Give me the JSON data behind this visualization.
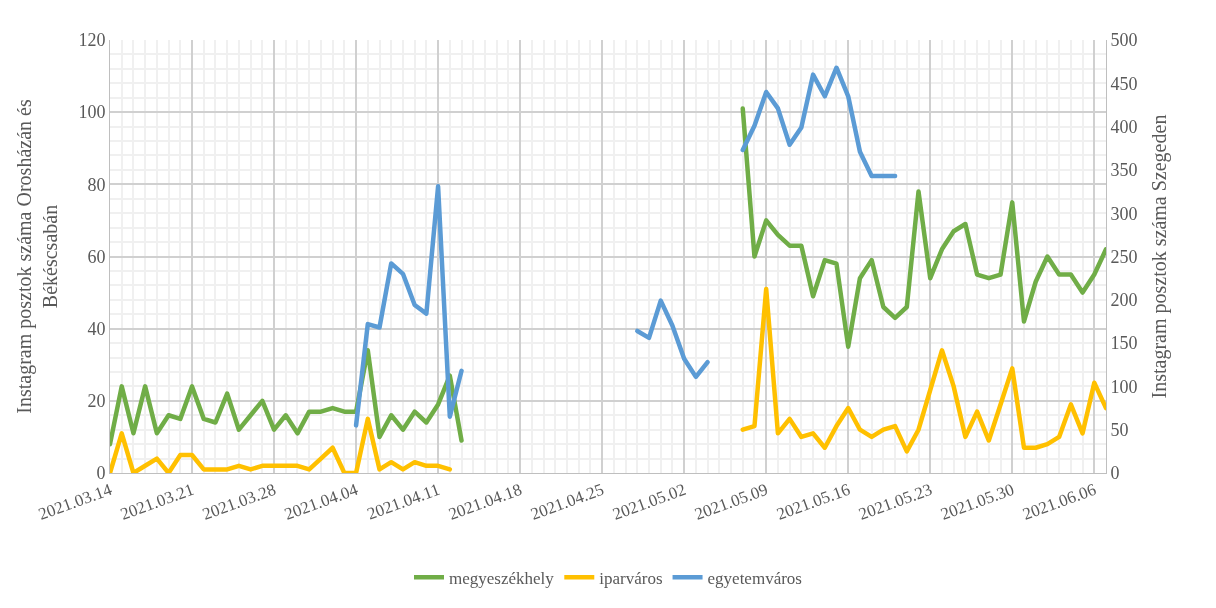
{
  "chart_data": {
    "type": "line",
    "ylabel": "Instagram posztok száma Orosházán és Békéscsabán",
    "y2label": "Instagram posztok száma Szegeden",
    "x": [
      "2021-03-14",
      "2021-03-15",
      "2021-03-16",
      "2021-03-17",
      "2021-03-18",
      "2021-03-19",
      "2021-03-20",
      "2021-03-21",
      "2021-03-22",
      "2021-03-23",
      "2021-03-24",
      "2021-03-25",
      "2021-03-26",
      "2021-03-27",
      "2021-03-28",
      "2021-03-29",
      "2021-03-30",
      "2021-03-31",
      "2021-04-01",
      "2021-04-02",
      "2021-04-03",
      "2021-04-04",
      "2021-04-05",
      "2021-04-06",
      "2021-04-07",
      "2021-04-08",
      "2021-04-09",
      "2021-04-10",
      "2021-04-11",
      "2021-04-12",
      "2021-04-13",
      "2021-04-14",
      "2021-04-15",
      "2021-04-16",
      "2021-04-17",
      "2021-04-18",
      "2021-04-19",
      "2021-04-20",
      "2021-04-21",
      "2021-04-22",
      "2021-04-23",
      "2021-04-24",
      "2021-04-25",
      "2021-04-26",
      "2021-04-27",
      "2021-04-28",
      "2021-04-29",
      "2021-04-30",
      "2021-05-01",
      "2021-05-02",
      "2021-05-03",
      "2021-05-04",
      "2021-05-05",
      "2021-05-06",
      "2021-05-07",
      "2021-05-08",
      "2021-05-09",
      "2021-05-10",
      "2021-05-11",
      "2021-05-12",
      "2021-05-13",
      "2021-05-14",
      "2021-05-15",
      "2021-05-16",
      "2021-05-17",
      "2021-05-18",
      "2021-05-19",
      "2021-05-20",
      "2021-05-21",
      "2021-05-22",
      "2021-05-23",
      "2021-05-24",
      "2021-05-25",
      "2021-05-26",
      "2021-05-27",
      "2021-05-28",
      "2021-05-29",
      "2021-05-30",
      "2021-05-31",
      "2021-06-01",
      "2021-06-02",
      "2021-06-03",
      "2021-06-04",
      "2021-06-05",
      "2021-06-06",
      "2021-06-07"
    ],
    "series": [
      {
        "name": "megyeszékhely",
        "color": "#70ad47",
        "values": [
          8,
          24,
          11,
          24,
          11,
          16,
          15,
          24,
          15,
          14,
          22,
          12,
          16,
          20,
          12,
          16,
          11,
          17,
          17,
          18,
          17,
          17,
          34,
          10,
          16,
          12,
          17,
          14,
          19,
          27,
          9,
          null,
          null,
          null,
          null,
          null,
          null,
          null,
          null,
          null,
          null,
          null,
          null,
          null,
          null,
          null,
          null,
          null,
          null,
          null,
          null,
          null,
          null,
          null,
          101,
          60,
          70,
          66,
          63,
          63,
          49,
          59,
          58,
          35,
          54,
          59,
          46,
          43,
          46,
          78,
          54,
          62,
          67,
          69,
          55,
          54,
          55,
          75,
          42,
          53,
          60,
          55,
          55,
          50,
          55,
          62
        ]
      },
      {
        "name": "iparváros",
        "color": "#ffc000",
        "values": [
          0,
          11,
          0,
          2,
          4,
          0,
          5,
          5,
          1,
          1,
          1,
          2,
          1,
          2,
          2,
          2,
          2,
          1,
          4,
          7,
          0,
          0,
          15,
          1,
          3,
          1,
          3,
          2,
          2,
          1,
          null,
          null,
          null,
          null,
          null,
          null,
          null,
          null,
          null,
          null,
          null,
          null,
          null,
          null,
          null,
          null,
          null,
          null,
          null,
          null,
          null,
          null,
          null,
          null,
          12,
          13,
          51,
          11,
          15,
          10,
          11,
          7,
          13,
          18,
          12,
          10,
          12,
          13,
          6,
          12,
          23,
          34,
          24,
          10,
          17,
          9,
          19,
          29,
          7,
          7,
          8,
          10,
          19,
          11,
          25,
          18
        ]
      },
      {
        "name": "egyetemváros",
        "color": "#5b9bd5",
        "axis": "y2",
        "values": [
          null,
          null,
          null,
          null,
          null,
          null,
          null,
          null,
          null,
          null,
          null,
          null,
          null,
          null,
          null,
          null,
          null,
          null,
          null,
          null,
          null,
          55,
          172,
          168,
          242,
          230,
          194,
          184,
          331,
          65,
          118,
          null,
          null,
          null,
          null,
          null,
          null,
          null,
          null,
          null,
          null,
          null,
          null,
          null,
          null,
          164,
          156,
          199,
          170,
          132,
          111,
          128,
          null,
          null,
          373,
          401,
          440,
          421,
          379,
          399,
          460,
          435,
          468,
          435,
          371,
          343,
          343,
          343,
          null,
          null,
          null,
          null,
          null,
          null,
          null,
          null,
          null,
          null,
          null,
          null,
          null,
          null,
          null,
          null,
          null,
          null
        ]
      }
    ],
    "xlim": [
      "2021-03-14",
      "2021-06-07"
    ],
    "xticks": [
      {
        "value": "2021-03-14",
        "label": "2021.03.14"
      },
      {
        "value": "2021-03-21",
        "label": "2021.03.21"
      },
      {
        "value": "2021-03-28",
        "label": "2021.03.28"
      },
      {
        "value": "2021-04-04",
        "label": "2021.04.04"
      },
      {
        "value": "2021-04-11",
        "label": "2021.04.11"
      },
      {
        "value": "2021-04-18",
        "label": "2021.04.18"
      },
      {
        "value": "2021-04-25",
        "label": "2021.04.25"
      },
      {
        "value": "2021-05-02",
        "label": "2021.05.02"
      },
      {
        "value": "2021-05-09",
        "label": "2021.05.09"
      },
      {
        "value": "2021-05-16",
        "label": "2021.05.16"
      },
      {
        "value": "2021-05-23",
        "label": "2021.05.23"
      },
      {
        "value": "2021-05-30",
        "label": "2021.05.30"
      },
      {
        "value": "2021-06-06",
        "label": "2021.06.06"
      }
    ],
    "ylim": [
      0,
      120
    ],
    "yticks": [
      0,
      20,
      40,
      60,
      80,
      100,
      120
    ],
    "y2lim": [
      0,
      500
    ],
    "y2ticks": [
      0,
      50,
      100,
      150,
      200,
      250,
      300,
      350,
      400,
      450,
      500
    ],
    "grid": true,
    "legend": "bottom",
    "marker": "none",
    "line_style": "solid"
  }
}
